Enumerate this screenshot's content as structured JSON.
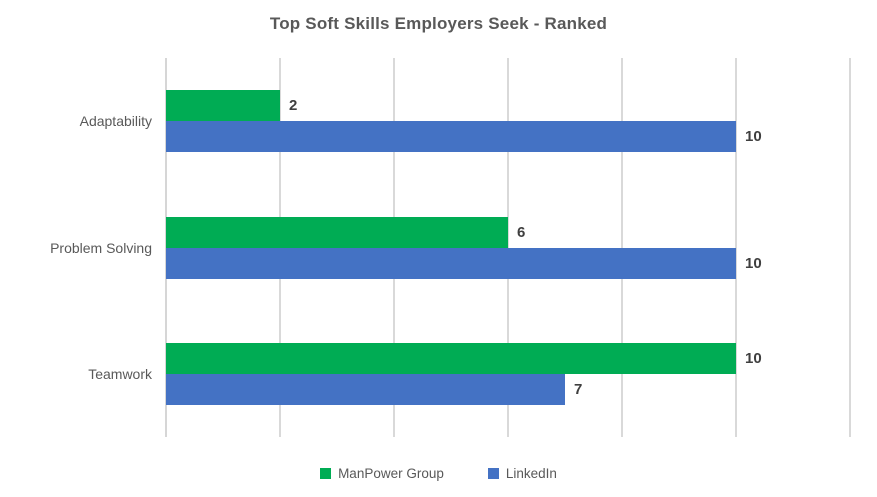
{
  "chart_data": {
    "type": "bar",
    "orientation": "horizontal",
    "title": "Top Soft Skills Employers Seek - Ranked",
    "categories": [
      "Adaptability",
      "Problem Solving",
      "Teamwork"
    ],
    "series": [
      {
        "name": "ManPower Group",
        "color": "#00AC54",
        "values": [
          2,
          6,
          10
        ]
      },
      {
        "name": "LinkedIn",
        "color": "#4472C4",
        "values": [
          10,
          10,
          7
        ]
      }
    ],
    "xlim": [
      0,
      12
    ],
    "grid_step": 2,
    "grid": true,
    "x_tick_labels_visible": false,
    "legend_position": "bottom",
    "data_labels": true,
    "colors": {
      "title_text": "#595959",
      "category_text": "#595959",
      "value_label_text": "#3f3f3f",
      "legend_text": "#595959",
      "gridline": "#d9d9d9",
      "axis_line": "#d6d6d6",
      "background": "#ffffff"
    }
  }
}
